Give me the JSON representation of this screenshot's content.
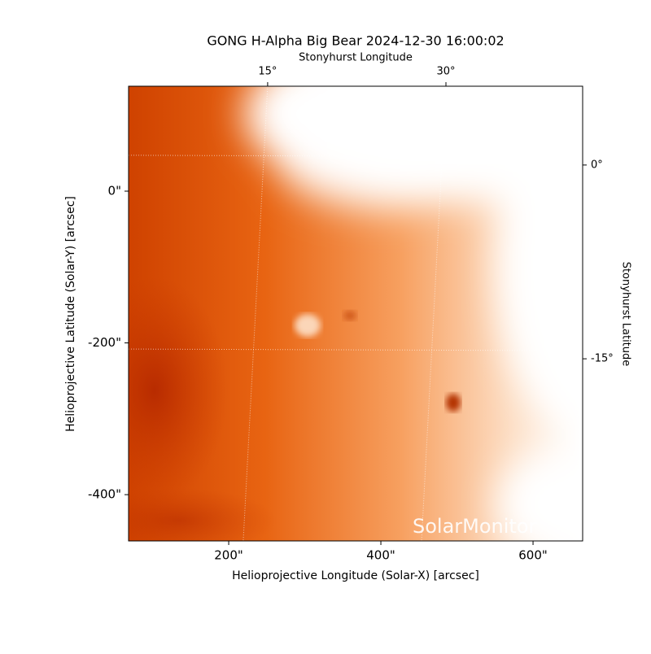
{
  "chart_data": {
    "type": "image",
    "title": "GONG H-Alpha Big Bear 2024-12-30 16:00:02",
    "xlabel": "Helioprojective Longitude (Solar-X) [arcsec]",
    "ylabel": "Helioprojective Latitude (Solar-Y) [arcsec]",
    "x2label": "Stonyhurst Longitude",
    "y2label": "Stonyhurst Latitude",
    "watermark": "SolarMonitor",
    "xlim": [
      68.4,
      665.2
    ],
    "ylim": [
      -461,
      138.3
    ],
    "xticks": [
      {
        "value": 200,
        "label": "200\""
      },
      {
        "value": 400,
        "label": "400\""
      },
      {
        "value": 600,
        "label": "600\""
      }
    ],
    "yticks": [
      {
        "value": 0,
        "label": "0\""
      },
      {
        "value": -200,
        "label": "-200\""
      },
      {
        "value": -400,
        "label": "-400\""
      }
    ],
    "x2lim": [
      3.3,
      41.5
    ],
    "x2ticks": [
      {
        "value": 15,
        "label": "15°"
      },
      {
        "value": 30,
        "label": "30°"
      }
    ],
    "y2lim": [
      -29.1,
      6.1
    ],
    "y2ticks": [
      {
        "value": 0,
        "label": "0°"
      },
      {
        "value": -15,
        "label": "-15°"
      }
    ],
    "grid": true
  }
}
